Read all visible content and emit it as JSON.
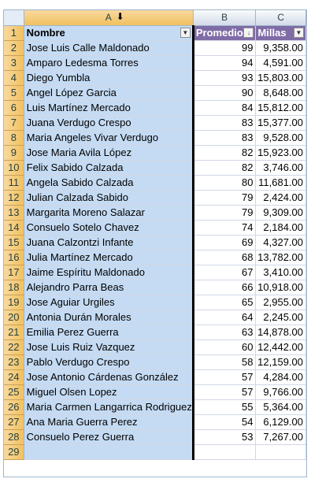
{
  "columns": {
    "corner": "",
    "a": "A",
    "b": "B",
    "c": "C"
  },
  "header_row": {
    "row": "1",
    "nombre": "Nombre",
    "promedio": "Promedio",
    "millas": "Millas",
    "filter_icon": "filter-dropdown",
    "sorted_icon": "sort-descending-filter"
  },
  "rows": [
    {
      "row": "2",
      "nombre": "Jose Luis Calle Maldonado",
      "promedio": "99",
      "millas": "9,358.00"
    },
    {
      "row": "3",
      "nombre": "Amparo Ledesma Torres",
      "promedio": "94",
      "millas": "4,591.00"
    },
    {
      "row": "4",
      "nombre": "Diego Yumbla",
      "promedio": "93",
      "millas": "15,803.00"
    },
    {
      "row": "5",
      "nombre": "Angel López Garcia",
      "promedio": "90",
      "millas": "8,648.00"
    },
    {
      "row": "6",
      "nombre": "Luis Martínez Mercado",
      "promedio": "84",
      "millas": "15,812.00"
    },
    {
      "row": "7",
      "nombre": "Juana Verdugo Crespo",
      "promedio": "83",
      "millas": "15,377.00"
    },
    {
      "row": "8",
      "nombre": "Maria Angeles Vivar Verdugo",
      "promedio": "83",
      "millas": "9,528.00"
    },
    {
      "row": "9",
      "nombre": "Jose Maria Avila López",
      "promedio": "82",
      "millas": "15,923.00"
    },
    {
      "row": "10",
      "nombre": "Felix Sabido Calzada",
      "promedio": "82",
      "millas": "3,746.00"
    },
    {
      "row": "11",
      "nombre": "Angela Sabido Calzada",
      "promedio": "80",
      "millas": "11,681.00"
    },
    {
      "row": "12",
      "nombre": "Julian Calzada Sabido",
      "promedio": "79",
      "millas": "2,424.00"
    },
    {
      "row": "13",
      "nombre": "Margarita Moreno Salazar",
      "promedio": "79",
      "millas": "9,309.00"
    },
    {
      "row": "14",
      "nombre": "Consuelo Sotelo Chavez",
      "promedio": "74",
      "millas": "2,184.00"
    },
    {
      "row": "15",
      "nombre": "Juana Calzontzi Infante",
      "promedio": "69",
      "millas": "4,327.00"
    },
    {
      "row": "16",
      "nombre": "Julia Martínez Mercado",
      "promedio": "68",
      "millas": "13,782.00"
    },
    {
      "row": "17",
      "nombre": "Jaime Espíritu Maldonado",
      "promedio": "67",
      "millas": "3,410.00"
    },
    {
      "row": "18",
      "nombre": "Alejandro Parra Beas",
      "promedio": "66",
      "millas": "10,918.00"
    },
    {
      "row": "19",
      "nombre": "Jose Aguiar Urgiles",
      "promedio": "65",
      "millas": "2,955.00"
    },
    {
      "row": "20",
      "nombre": "Antonia Durán Morales",
      "promedio": "64",
      "millas": "2,245.00"
    },
    {
      "row": "21",
      "nombre": "Emilia Perez Guerra",
      "promedio": "63",
      "millas": "14,878.00"
    },
    {
      "row": "22",
      "nombre": "Jose Luis Ruiz Vazquez",
      "promedio": "60",
      "millas": "12,442.00"
    },
    {
      "row": "23",
      "nombre": "Pablo Verdugo Crespo",
      "promedio": "58",
      "millas": "12,159.00"
    },
    {
      "row": "24",
      "nombre": "Jose Antonio Cárdenas González",
      "promedio": "57",
      "millas": "4,284.00"
    },
    {
      "row": "25",
      "nombre": "Miguel Olsen Lopez",
      "promedio": "57",
      "millas": "9,766.00"
    },
    {
      "row": "26",
      "nombre": "Maria Carmen Langarrica Rodriguez",
      "promedio": "55",
      "millas": "5,364.00"
    },
    {
      "row": "27",
      "nombre": "Ana Maria Guerra Perez",
      "promedio": "54",
      "millas": "6,129.00"
    },
    {
      "row": "28",
      "nombre": "Consuelo Perez Guerra",
      "promedio": "53",
      "millas": "7,267.00"
    },
    {
      "row": "29",
      "nombre": "",
      "promedio": "",
      "millas": ""
    }
  ],
  "colors": {
    "header_fill": "#7f6ba6",
    "selected_column_fill": "#c5dbf3",
    "row_header_fill": "#f1c15f"
  }
}
